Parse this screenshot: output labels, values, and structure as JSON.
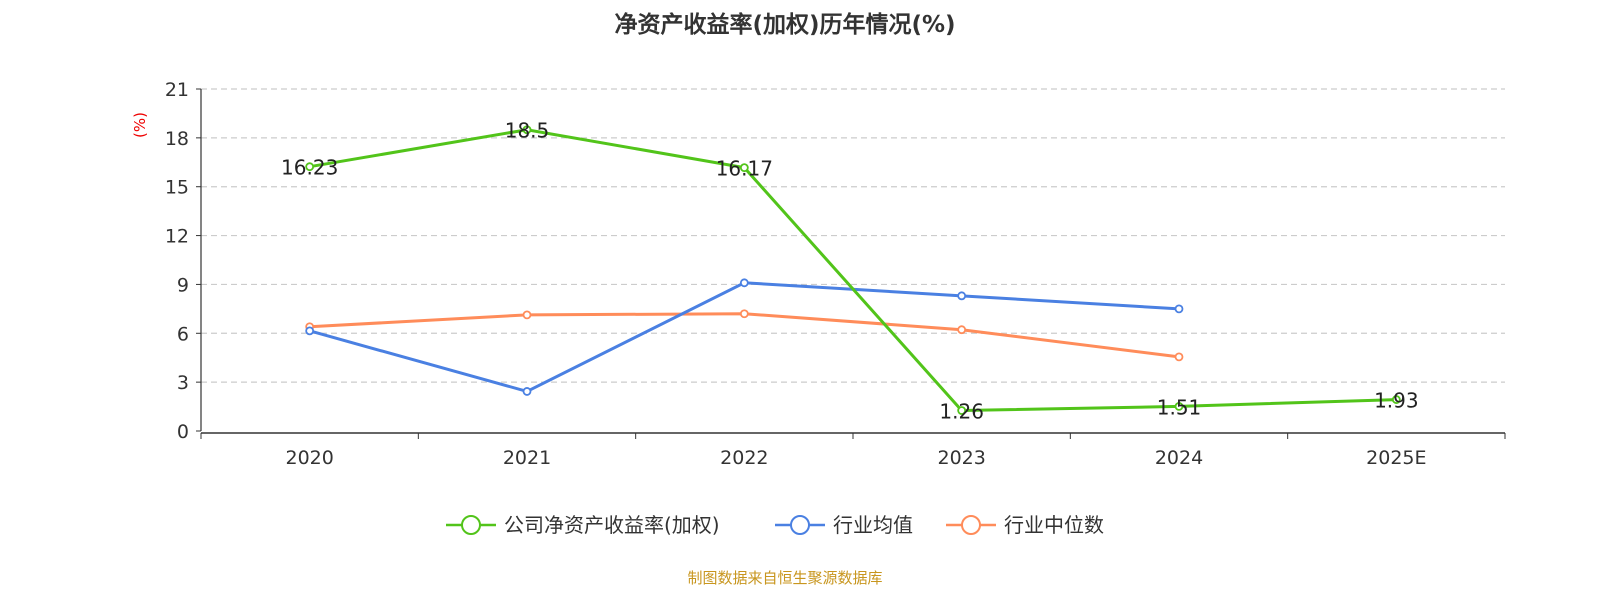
{
  "chart_data": {
    "type": "line",
    "title": "净资产收益率(加权)历年情况(%)",
    "ylabel": "(%)",
    "categories": [
      "2020",
      "2021",
      "2022",
      "2023",
      "2024",
      "2025E"
    ],
    "ylim": [
      0,
      21
    ],
    "yticks": [
      0,
      3,
      6,
      9,
      12,
      15,
      18,
      21
    ],
    "grid": true,
    "legend_position": "bottom",
    "series": [
      {
        "name": "公司净资产收益率(加权)",
        "color": "#52c41a",
        "values": [
          16.23,
          18.5,
          16.17,
          1.26,
          1.51,
          1.93
        ],
        "labels": [
          "16.23",
          "18.5",
          "16.17",
          "1.26",
          "1.51",
          "1.93"
        ]
      },
      {
        "name": "行业均值",
        "color": "#4a80e2",
        "values": [
          6.15,
          2.43,
          9.1,
          8.3,
          7.5,
          null
        ]
      },
      {
        "name": "行业中位数",
        "color": "#ff8c5a",
        "values": [
          6.4,
          7.13,
          7.2,
          6.22,
          4.55,
          null
        ]
      }
    ]
  },
  "source": "制图数据来自恒生聚源数据库"
}
